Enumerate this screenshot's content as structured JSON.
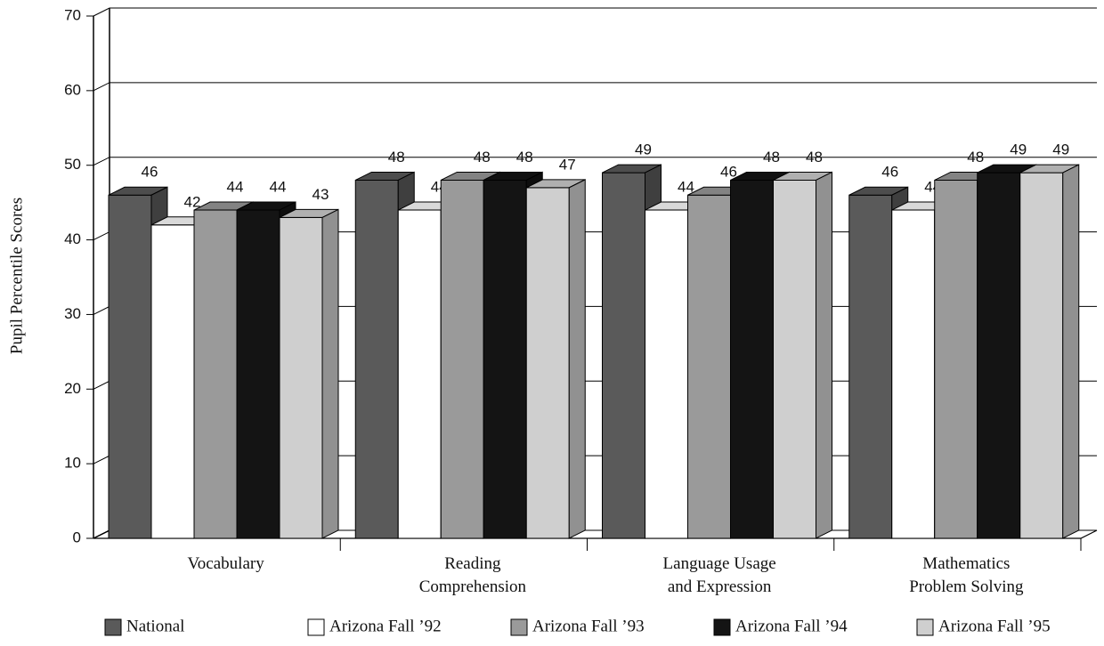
{
  "chart_data": {
    "type": "bar3d",
    "ylabel": "Pupil Percentile Scores",
    "categories": [
      "Vocabulary",
      "Reading\nComprehension",
      "Language Usage\nand Expression",
      "Mathematics\nProblem Solving"
    ],
    "series": [
      {
        "name": "National",
        "color": "#5a5a5a",
        "values": [
          46,
          48,
          49,
          46
        ]
      },
      {
        "name": "Arizona Fall ’92",
        "color": "#ffffff",
        "values": [
          42,
          44,
          44,
          44
        ]
      },
      {
        "name": "Arizona Fall ’93",
        "color": "#9a9a9a",
        "values": [
          44,
          48,
          46,
          48
        ]
      },
      {
        "name": "Arizona Fall ’94",
        "color": "#141414",
        "values": [
          44,
          48,
          48,
          49
        ]
      },
      {
        "name": "Arizona Fall ’95",
        "color": "#cfcfcf",
        "values": [
          43,
          47,
          48,
          49
        ]
      }
    ],
    "ylim": [
      0,
      70
    ],
    "yticks": [
      0,
      10,
      20,
      30,
      40,
      50,
      60,
      70
    ],
    "grid": true
  }
}
